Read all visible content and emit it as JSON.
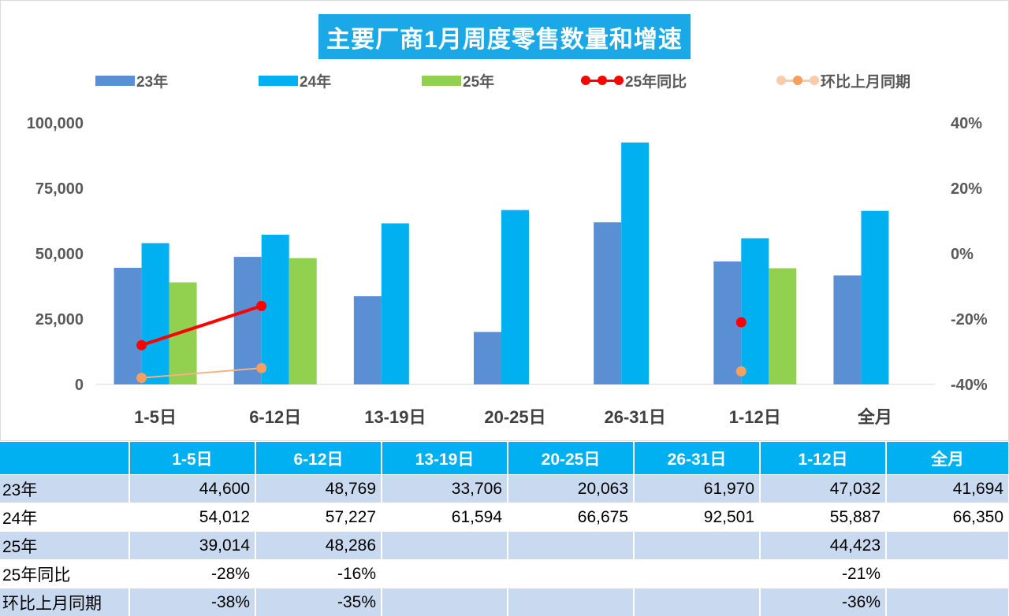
{
  "chart_data": {
    "type": "bar",
    "title": "主要厂商1月周度零售数量和增速",
    "categories": [
      "1-5日",
      "6-12日",
      "13-19日",
      "20-25日",
      "26-31日",
      "1-12日",
      "全月"
    ],
    "series": [
      {
        "name": "23年",
        "kind": "bar",
        "color": "#5b8fd4",
        "values": [
          44600,
          48769,
          33706,
          20063,
          61970,
          47032,
          41694
        ]
      },
      {
        "name": "24年",
        "kind": "bar",
        "color": "#00b0f0",
        "values": [
          54012,
          57227,
          61594,
          66675,
          92501,
          55887,
          66350
        ]
      },
      {
        "name": "25年",
        "kind": "bar",
        "color": "#92d050",
        "values": [
          39014,
          48286,
          null,
          null,
          null,
          44423,
          null
        ]
      },
      {
        "name": "25年同比",
        "kind": "line",
        "color": "#ff0000",
        "axis": "right",
        "values": [
          -0.28,
          -0.16,
          null,
          null,
          null,
          -0.21,
          null
        ]
      },
      {
        "name": "环比上月同期",
        "kind": "line",
        "color": "#f4b183",
        "marker_color": "#f79f5f",
        "axis": "right",
        "values": [
          -0.38,
          -0.35,
          null,
          null,
          null,
          -0.36,
          null
        ]
      }
    ],
    "y_left": {
      "min": 0,
      "max": 100000,
      "ticks": [
        "100,000",
        "75,000",
        "50,000",
        "25,000",
        "0"
      ]
    },
    "y_right": {
      "min": -0.4,
      "max": 0.4,
      "ticks": [
        "40%",
        "20%",
        "0%",
        "-20%",
        "-40%"
      ]
    },
    "legend_position": "top"
  },
  "table": {
    "headers": [
      "",
      "1-5日",
      "6-12日",
      "13-19日",
      "20-25日",
      "26-31日",
      "1-12日",
      "全月"
    ],
    "rows": [
      {
        "label": "23年",
        "cells": [
          "44,600",
          "48,769",
          "33,706",
          "20,063",
          "61,970",
          "47,032",
          "41,694"
        ]
      },
      {
        "label": "24年",
        "cells": [
          "54,012",
          "57,227",
          "61,594",
          "66,675",
          "92,501",
          "55,887",
          "66,350"
        ]
      },
      {
        "label": "25年",
        "cells": [
          "39,014",
          "48,286",
          "",
          "",
          "",
          "44,423",
          ""
        ]
      },
      {
        "label": "25年同比",
        "cells": [
          "-28%",
          "-16%",
          "",
          "",
          "",
          "-21%",
          ""
        ]
      },
      {
        "label": "环比上月同期",
        "cells": [
          "-38%",
          "-35%",
          "",
          "",
          "",
          "-36%",
          ""
        ]
      }
    ]
  }
}
